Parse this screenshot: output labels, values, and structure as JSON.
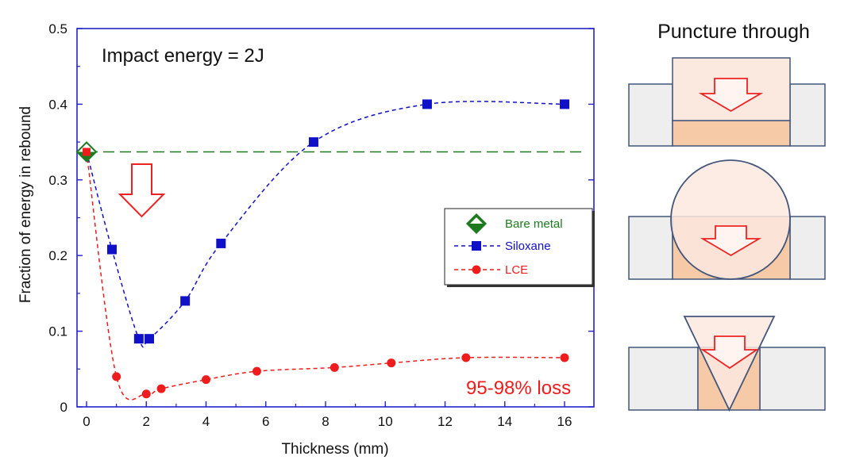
{
  "chart_data": {
    "type": "line",
    "title": "",
    "xlabel": "Thickness (mm)",
    "ylabel": "Fraction of energy in rebound",
    "xlim": [
      0,
      17
    ],
    "ylim": [
      0,
      0.5
    ],
    "xticks": [
      0,
      2,
      4,
      6,
      8,
      10,
      12,
      14,
      16
    ],
    "yticks": [
      0,
      0.1,
      0.2,
      0.3,
      0.4,
      0.5
    ],
    "xtick_labels": [
      "0",
      "2",
      "4",
      "6",
      "8",
      "10",
      "12",
      "14",
      "16"
    ],
    "ytick_labels": [
      "0",
      "0.1",
      "0.2",
      "0.3",
      "0.4",
      "0.5"
    ],
    "grid": false,
    "legend_position": "middle-right",
    "annotations": {
      "impact_energy": "Impact energy = 2J",
      "loss": "95-98% loss"
    },
    "series": [
      {
        "name": "Bare metal",
        "marker": "diamond",
        "color": "#1f7a1f",
        "line_style": "dashed",
        "x": [
          0,
          17
        ],
        "y": [
          0.337,
          0.337
        ],
        "points_x": [
          0
        ],
        "points_y": [
          0.337
        ]
      },
      {
        "name": "Siloxane",
        "marker": "square",
        "color": "#1010c8",
        "line_style": "dashed",
        "x": [
          0,
          0.85,
          1.75,
          2.1,
          3.3,
          4.5,
          7.6,
          11.4,
          16
        ],
        "y": [
          0.337,
          0.208,
          0.09,
          0.09,
          0.14,
          0.216,
          0.35,
          0.4,
          0.4
        ]
      },
      {
        "name": "LCE",
        "marker": "circle",
        "color": "#ee1c1c",
        "line_style": "dashed",
        "x": [
          0,
          1,
          2,
          2.5,
          4,
          5.7,
          8.3,
          10.2,
          12.7,
          16
        ],
        "y": [
          0.337,
          0.04,
          0.017,
          0.024,
          0.036,
          0.047,
          0.052,
          0.058,
          0.065,
          0.065
        ]
      }
    ]
  },
  "diagram": {
    "title": "Puncture through",
    "panels": [
      "flat-punch",
      "spherical-impactor",
      "conical-impactor"
    ]
  },
  "colors": {
    "frame_blue": "#2222cc",
    "panel_stroke": "#44557a",
    "panel_fill": "#eeeeee",
    "sample_fill": "#f6caa6",
    "impactor_fill": "#fbe9df",
    "arrow_red": "#ee2222"
  }
}
